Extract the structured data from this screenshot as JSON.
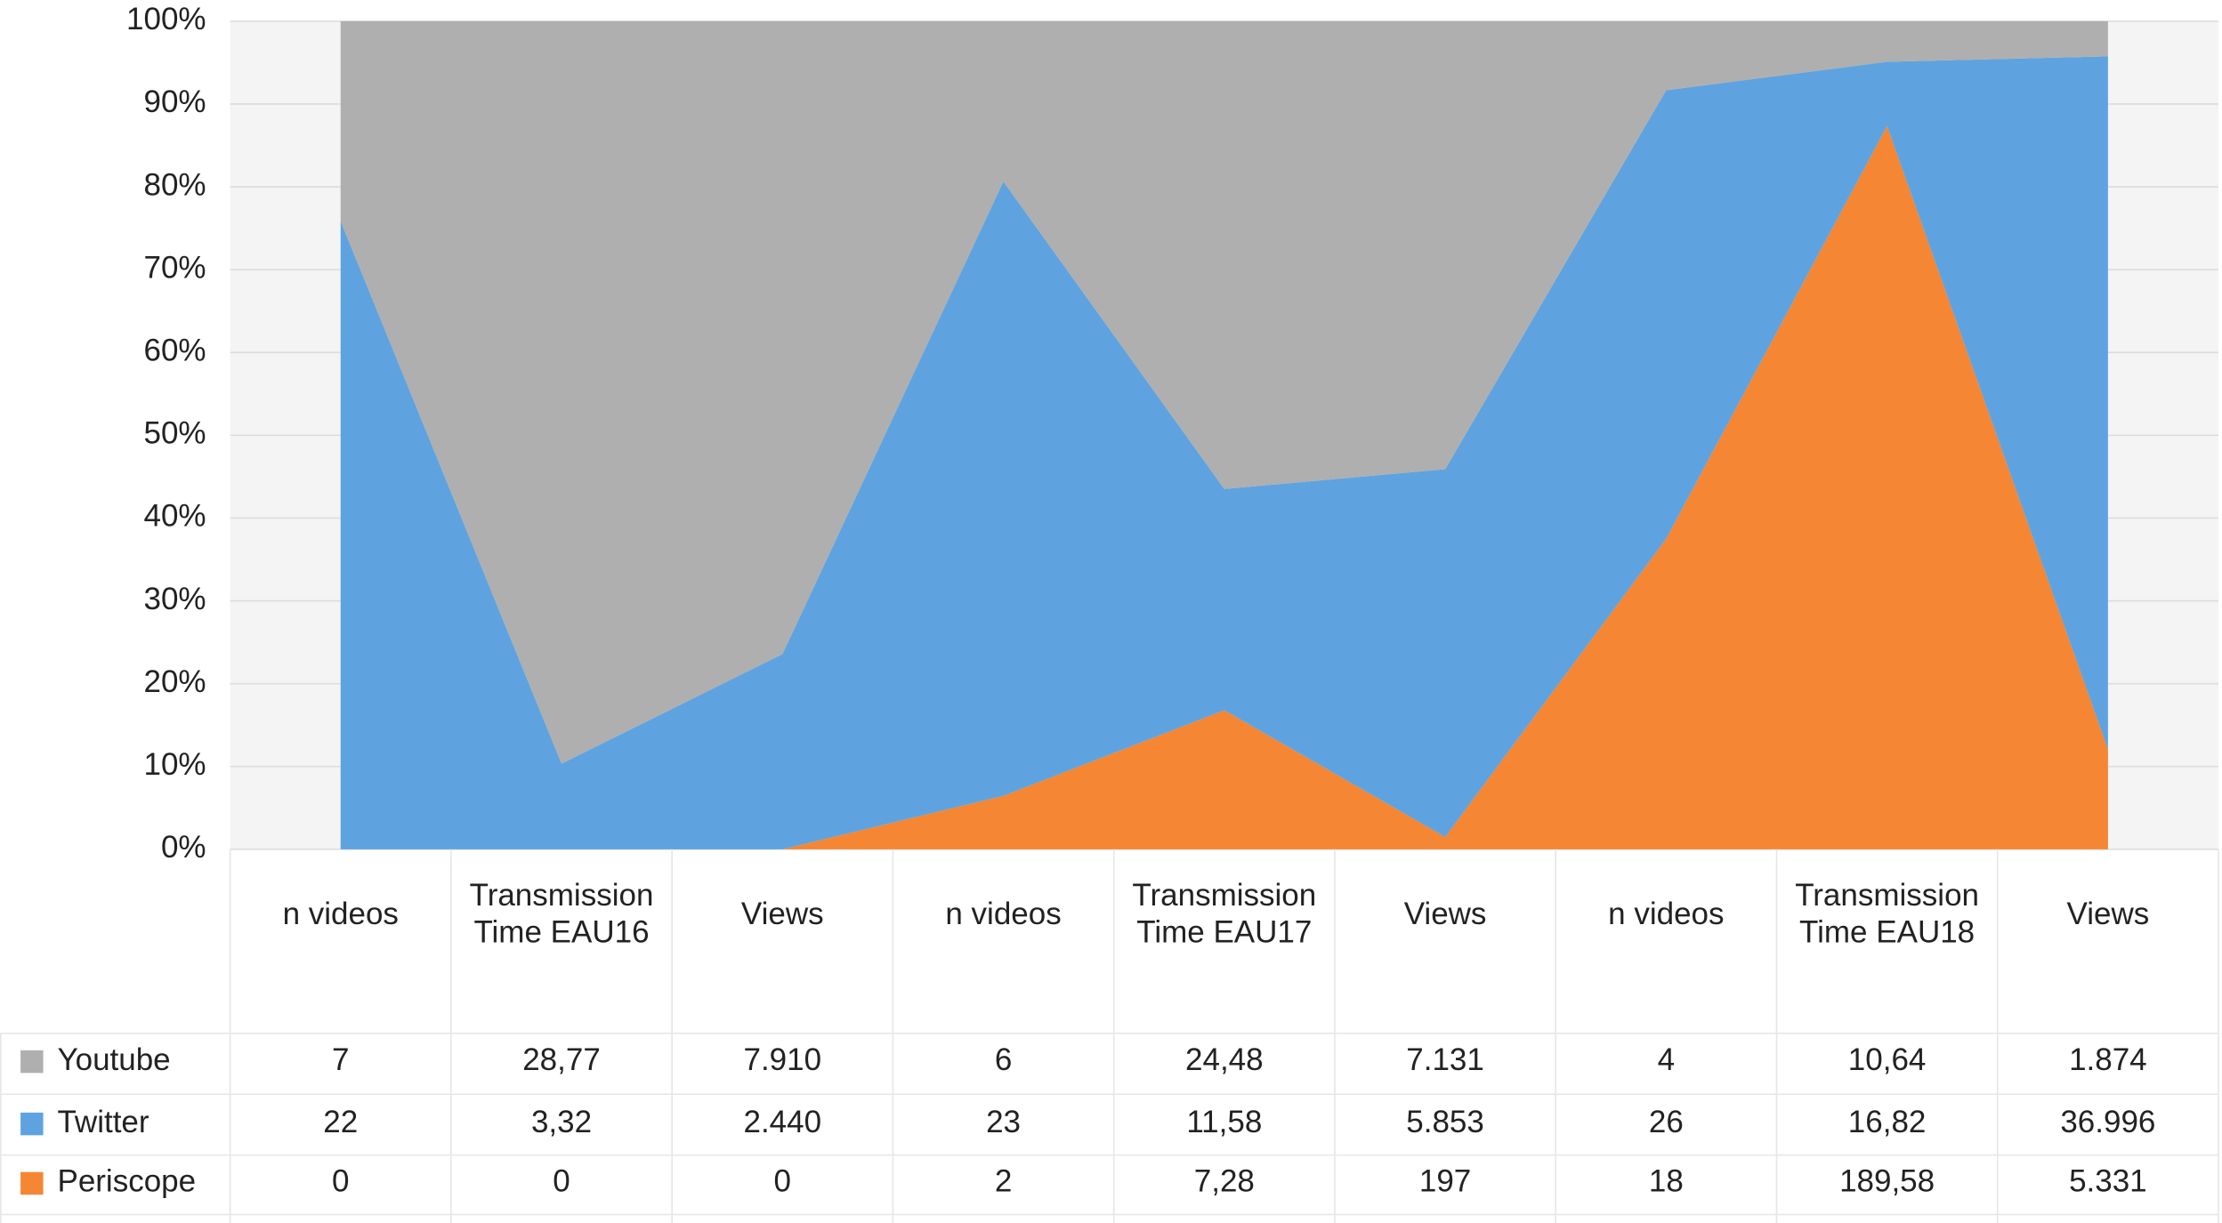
{
  "chart_data": {
    "type": "area",
    "stack": "percent",
    "categories": [
      "n videos",
      "Transmission Time EAU16",
      "Views",
      "n videos",
      "Transmission Time EAU17",
      "Views",
      "n videos",
      "Transmission Time EAU18",
      "Views"
    ],
    "series": [
      {
        "name": "Youtube",
        "color": "#afafaf",
        "values": [
          7,
          28.77,
          7910,
          6,
          24.48,
          7131,
          4,
          10.64,
          1874
        ],
        "value_labels": [
          "7",
          "28,77",
          "7.910",
          "6",
          "24,48",
          "7.131",
          "4",
          "10,64",
          "1.874"
        ]
      },
      {
        "name": "Twitter",
        "color": "#5ea3e0",
        "values": [
          22,
          3.32,
          2440,
          23,
          11.58,
          5853,
          26,
          16.82,
          36996
        ],
        "value_labels": [
          "22",
          "3,32",
          "2.440",
          "23",
          "11,58",
          "5.853",
          "26",
          "16,82",
          "36.996"
        ]
      },
      {
        "name": "Periscope",
        "color": "#f58633",
        "values": [
          0,
          0,
          0,
          2,
          7.28,
          197,
          18,
          189.58,
          5331
        ],
        "value_labels": [
          "0",
          "0",
          "0",
          "2",
          "7,28",
          "197",
          "18",
          "189,58",
          "5.331"
        ]
      }
    ],
    "ylim": [
      0,
      100
    ],
    "yticks": [
      {
        "value": 0,
        "label": "0%"
      },
      {
        "value": 10,
        "label": "10%"
      },
      {
        "value": 20,
        "label": "20%"
      },
      {
        "value": 30,
        "label": "30%"
      },
      {
        "value": 40,
        "label": "40%"
      },
      {
        "value": 50,
        "label": "50%"
      },
      {
        "value": 60,
        "label": "60%"
      },
      {
        "value": 70,
        "label": "70%"
      },
      {
        "value": 80,
        "label": "80%"
      },
      {
        "value": 90,
        "label": "90%"
      },
      {
        "value": 100,
        "label": "100%"
      }
    ],
    "grid": true
  }
}
